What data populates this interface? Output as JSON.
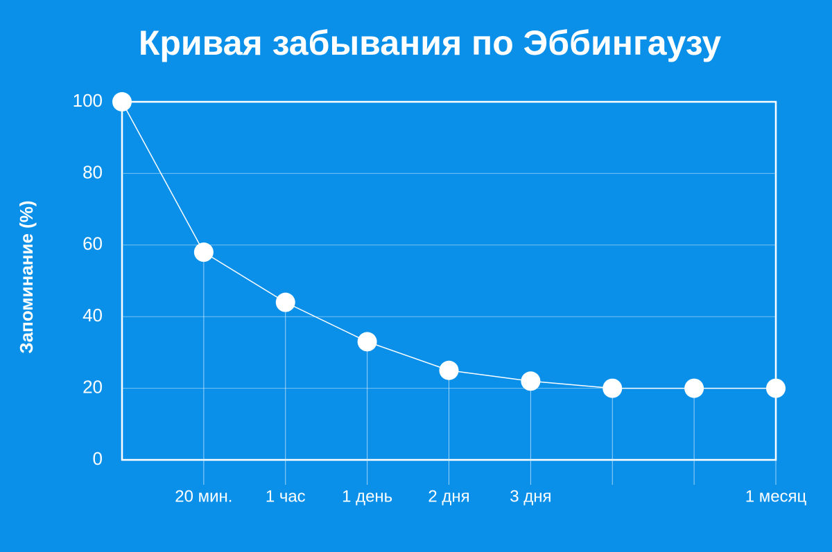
{
  "chart_data": {
    "type": "line",
    "title": "Кривая забывания по Эббингаузу",
    "y_label": "Запоминание (%)",
    "categories": [
      null,
      "20 мин.",
      "1 час",
      "1 день",
      "2 дня",
      "3 дня",
      null,
      null,
      "1 месяц"
    ],
    "values": [
      100,
      58,
      44,
      33,
      25,
      22,
      20,
      20,
      20
    ],
    "color": "#ffffff",
    "ylim": [
      0,
      100
    ],
    "yticks": [
      0,
      20,
      40,
      60,
      80,
      100
    ],
    "grid": true
  }
}
